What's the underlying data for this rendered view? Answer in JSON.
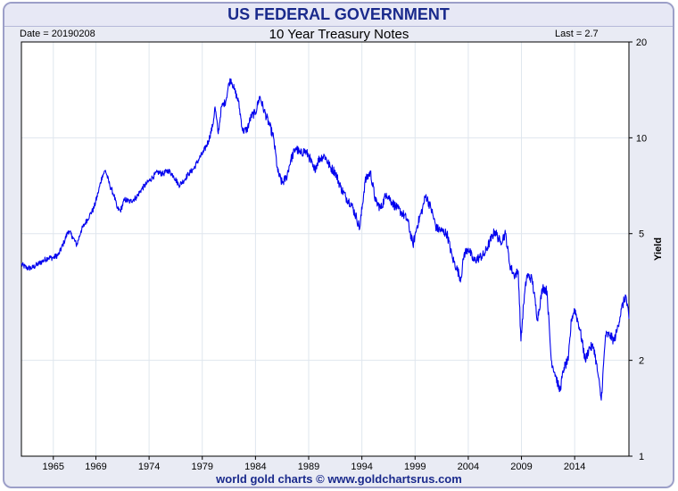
{
  "header": {
    "title": "US FEDERAL GOVERNMENT",
    "date_label": "Date = 20190208",
    "subtitle": "10 Year Treasury Notes",
    "last_label": "Last = 2.7"
  },
  "footer": {
    "credit": "world gold charts © www.goldchartsrus.com"
  },
  "colors": {
    "line": "#0000ee",
    "grid": "#dfe6ee",
    "border": "#9c9fc8",
    "title": "#1a2a8c"
  },
  "chart_data": {
    "type": "line",
    "title": "10 Year Treasury Notes",
    "ylabel": "Yield",
    "yscale": "log",
    "ylim": [
      1,
      20
    ],
    "xlim": [
      1962.0,
      2019.1
    ],
    "x_ticks": [
      "1965",
      "1969",
      "1974",
      "1979",
      "1984",
      "1989",
      "1994",
      "1999",
      "2004",
      "2009",
      "2014"
    ],
    "y_ticks": [
      "1",
      "2",
      "5",
      "10",
      "20"
    ],
    "grid": true,
    "series": [
      {
        "x": [
          1962.0,
          1962.5,
          1963.0,
          1963.5,
          1964.0,
          1964.5,
          1965.0,
          1965.5,
          1966.0,
          1966.4,
          1966.8,
          1967.2,
          1967.6,
          1968.0,
          1968.4,
          1968.8,
          1969.2,
          1969.6,
          1969.9,
          1970.3,
          1970.7,
          1971.0,
          1971.3,
          1971.7,
          1972.2,
          1972.8,
          1973.3,
          1973.8,
          1974.3,
          1974.8,
          1975.3,
          1975.8,
          1976.3,
          1976.8,
          1977.2,
          1977.7,
          1978.2,
          1978.7,
          1979.1,
          1979.6,
          1980.0,
          1980.2,
          1980.5,
          1980.8,
          1981.2,
          1981.5,
          1981.7,
          1982.0,
          1982.4,
          1982.8,
          1983.2,
          1983.6,
          1984.0,
          1984.4,
          1984.8,
          1985.3,
          1985.7,
          1986.1,
          1986.5,
          1986.9,
          1987.3,
          1987.8,
          1988.2,
          1988.6,
          1989.0,
          1989.5,
          1990.0,
          1990.5,
          1991.0,
          1991.5,
          1992.0,
          1992.5,
          1993.0,
          1993.5,
          1993.8,
          1994.3,
          1994.8,
          1995.3,
          1995.8,
          1996.3,
          1996.8,
          1997.3,
          1997.8,
          1998.3,
          1998.8,
          1999.2,
          1999.7,
          2000.0,
          2000.5,
          2001.0,
          2001.5,
          2002.0,
          2002.5,
          2002.9,
          2003.3,
          2003.6,
          2004.0,
          2004.5,
          2005.0,
          2005.5,
          2006.0,
          2006.5,
          2007.0,
          2007.5,
          2007.9,
          2008.3,
          2008.7,
          2008.95,
          2009.2,
          2009.5,
          2010.0,
          2010.5,
          2011.0,
          2011.4,
          2011.8,
          2012.2,
          2012.6,
          2013.0,
          2013.4,
          2013.7,
          2014.0,
          2014.5,
          2015.0,
          2015.4,
          2015.8,
          2016.2,
          2016.5,
          2016.9,
          2017.3,
          2017.7,
          2018.0,
          2018.4,
          2018.8,
          2019.1
        ],
        "y": [
          4.0,
          3.9,
          3.9,
          4.0,
          4.1,
          4.2,
          4.2,
          4.3,
          4.7,
          5.1,
          4.9,
          4.6,
          5.1,
          5.4,
          5.7,
          6.0,
          6.7,
          7.6,
          7.9,
          7.1,
          6.6,
          6.0,
          5.9,
          6.4,
          6.3,
          6.5,
          6.9,
          7.2,
          7.5,
          7.8,
          7.7,
          7.9,
          7.6,
          7.1,
          7.3,
          7.7,
          8.0,
          8.6,
          9.0,
          9.8,
          11.0,
          12.5,
          10.3,
          12.5,
          13.0,
          14.8,
          15.3,
          14.2,
          13.0,
          10.5,
          10.6,
          11.7,
          12.0,
          13.5,
          12.2,
          11.0,
          10.0,
          7.8,
          7.2,
          7.5,
          8.5,
          9.3,
          8.9,
          9.1,
          8.8,
          7.9,
          8.6,
          8.8,
          8.1,
          7.8,
          7.0,
          6.5,
          6.2,
          5.6,
          5.2,
          7.3,
          7.8,
          6.3,
          6.0,
          6.7,
          6.3,
          6.0,
          5.8,
          5.5,
          4.6,
          5.3,
          6.0,
          6.6,
          6.0,
          5.2,
          5.1,
          5.0,
          4.2,
          3.9,
          3.6,
          4.3,
          4.5,
          4.1,
          4.2,
          4.3,
          4.7,
          5.1,
          4.7,
          5.0,
          4.0,
          3.7,
          3.8,
          2.3,
          3.0,
          3.7,
          3.6,
          2.7,
          3.4,
          3.3,
          2.0,
          1.8,
          1.6,
          1.9,
          2.0,
          2.7,
          2.9,
          2.5,
          2.0,
          2.2,
          2.2,
          1.8,
          1.5,
          2.4,
          2.4,
          2.3,
          2.5,
          2.9,
          3.2,
          2.7
        ]
      }
    ]
  }
}
